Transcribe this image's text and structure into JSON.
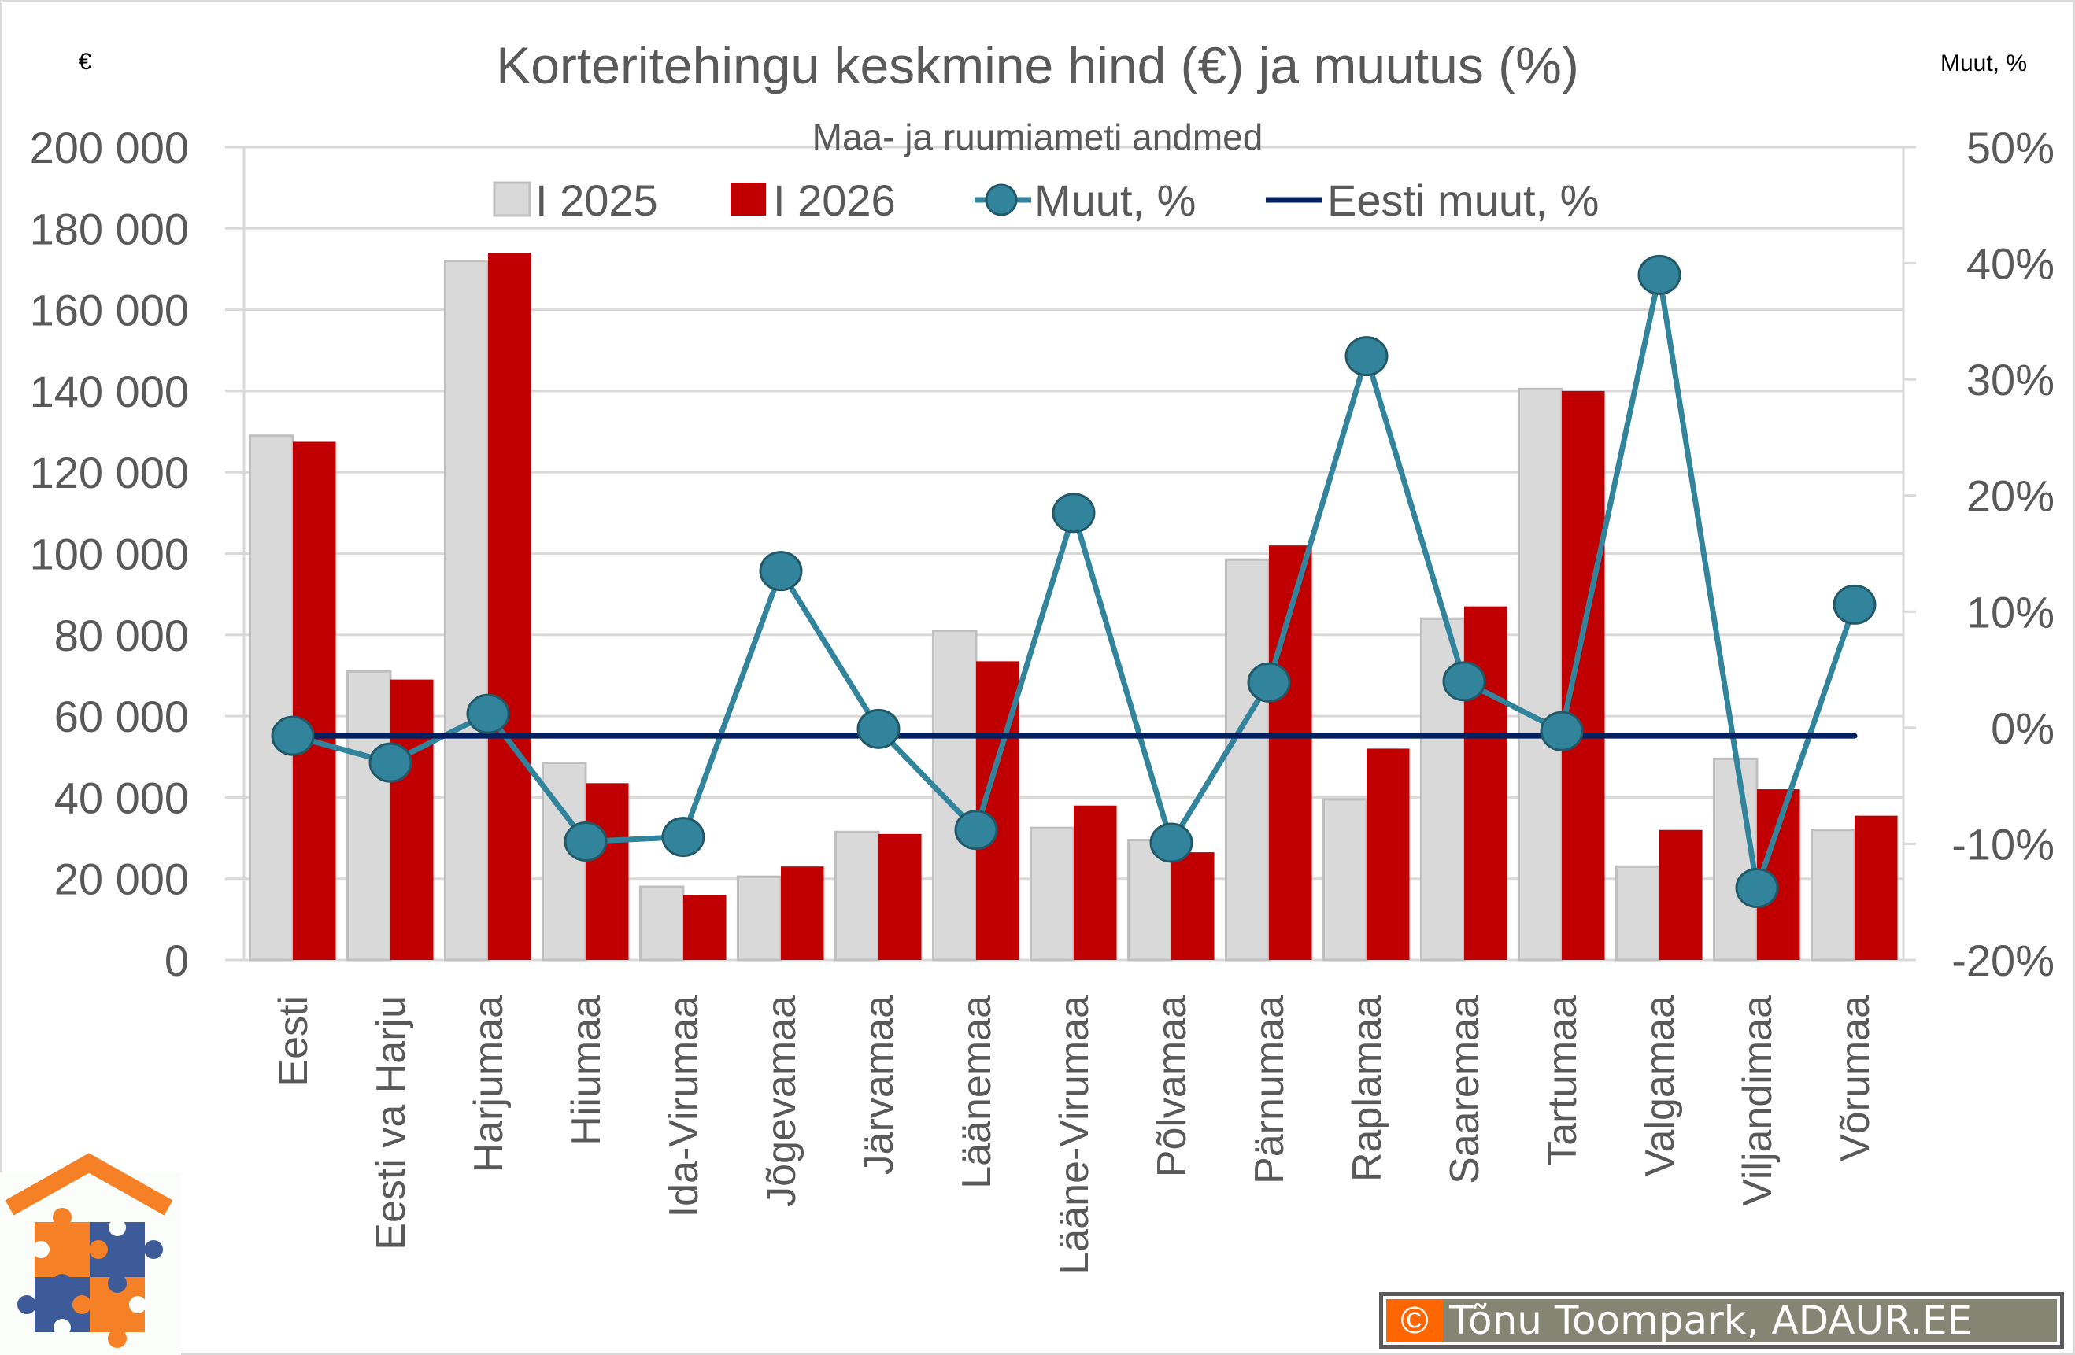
{
  "chart_data": {
    "type": "bar+line",
    "title": "Korteritehingu keskmine hind (€) ja muutus (%)",
    "subtitle": "Maa- ja ruumiameti andmed",
    "left_axis_unit": "€",
    "right_axis_unit": "Muut, %",
    "categories": [
      "Eesti",
      "Eesti va Harju",
      "Harjumaa",
      "Hiiumaa",
      "Ida-Virumaa",
      "Jõgevamaa",
      "Järvamaa",
      "Läänemaa",
      "Lääne-Virumaa",
      "Põlvamaa",
      "Pärnumaa",
      "Raplamaa",
      "Saaremaa",
      "Tartumaa",
      "Valgamaa",
      "Viljandimaa",
      "Võrumaa"
    ],
    "series": [
      {
        "name": "I 2025",
        "type": "bar",
        "axis": "left",
        "color": "#d9d9d9",
        "values": [
          129000,
          71000,
          172000,
          48500,
          18000,
          20500,
          31500,
          81000,
          32500,
          29500,
          98500,
          39500,
          84000,
          140500,
          23000,
          49500,
          32000
        ]
      },
      {
        "name": "I 2026",
        "type": "bar",
        "axis": "left",
        "color": "#c00000",
        "values": [
          127500,
          69000,
          174000,
          43500,
          16000,
          23000,
          31000,
          73500,
          38000,
          26500,
          102000,
          52000,
          87000,
          140000,
          32000,
          42000,
          35500
        ]
      },
      {
        "name": "Muut, %",
        "type": "line",
        "axis": "right",
        "color": "#31849b",
        "values": [
          -0.7,
          -3.0,
          1.2,
          -9.8,
          -9.4,
          13.5,
          -0.1,
          -8.8,
          18.5,
          -9.9,
          3.9,
          32.0,
          4.0,
          -0.3,
          39.0,
          -13.8,
          10.6
        ]
      },
      {
        "name": "Eesti muut, %",
        "type": "line",
        "axis": "right",
        "color": "#002060",
        "values": [
          -0.7,
          -0.7,
          -0.7,
          -0.7,
          -0.7,
          -0.7,
          -0.7,
          -0.7,
          -0.7,
          -0.7,
          -0.7,
          -0.7,
          -0.7,
          -0.7,
          -0.7,
          -0.7,
          -0.7
        ]
      }
    ],
    "left_axis": {
      "min": 0,
      "max": 200000,
      "step": 20000,
      "ticks": [
        "0",
        "20 000",
        "40 000",
        "60 000",
        "80 000",
        "100 000",
        "120 000",
        "140 000",
        "160 000",
        "180 000",
        "200 000"
      ]
    },
    "right_axis": {
      "min": -20,
      "max": 50,
      "step": 10,
      "ticks": [
        "-20%",
        "-10%",
        "0%",
        "10%",
        "20%",
        "30%",
        "40%",
        "50%"
      ]
    },
    "grid": true,
    "legend_position": "top"
  },
  "legend": {
    "items": [
      "I 2025",
      "I 2026",
      "Muut, %",
      "Eesti muut, %"
    ]
  },
  "copyright": {
    "symbol": "©",
    "text": "Tõnu Toompark, ADAUR.EE"
  },
  "colors": {
    "bar_2025": "#d9d9d9",
    "bar_2025_border": "#bfbfbf",
    "bar_2026": "#c00000",
    "change_line": "#31849b",
    "eesti_line": "#002060",
    "logo_orange": "#f58025",
    "logo_blue": "#3d5a99"
  }
}
